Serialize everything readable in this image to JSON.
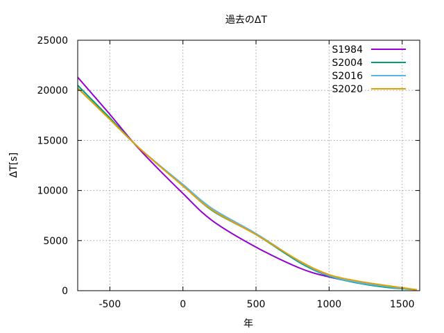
{
  "chart_data": {
    "type": "line",
    "title": "過去のΔT",
    "xlabel": "年",
    "ylabel": "ΔT[s]",
    "xlim": [
      -720,
      1620
    ],
    "ylim": [
      0,
      25000
    ],
    "xticks": [
      -500,
      0,
      500,
      1000,
      1500
    ],
    "xtick_labels": [
      "-500",
      "0",
      "500",
      "1000",
      "1500"
    ],
    "yticks": [
      0,
      5000,
      10000,
      15000,
      20000,
      25000
    ],
    "ytick_labels": [
      "0",
      "5000",
      "10000",
      "15000",
      "20000",
      "25000"
    ],
    "grid": true,
    "legend_position": "top-right",
    "series": [
      {
        "name": "S1984",
        "color": "#9400d3",
        "x": [
          -720,
          -500,
          -300,
          0,
          200,
          500,
          800,
          1000,
          1200,
          1400,
          1600
        ],
        "y": [
          21300,
          17600,
          14150,
          9700,
          7000,
          4350,
          2250,
          1370,
          800,
          400,
          100
        ]
      },
      {
        "name": "S2004",
        "color": "#009e73",
        "x": [
          -720,
          -500,
          -300,
          0,
          200,
          500,
          800,
          1000,
          1200,
          1400,
          1600
        ],
        "y": [
          20500,
          17250,
          14250,
          10500,
          8000,
          5600,
          2800,
          1450,
          750,
          320,
          100
        ]
      },
      {
        "name": "S2016",
        "color": "#56b4e9",
        "x": [
          -720,
          -500,
          -300,
          0,
          200,
          500,
          800,
          1000,
          1200,
          1400,
          1600
        ],
        "y": [
          20250,
          17100,
          14250,
          10600,
          8200,
          5700,
          2900,
          1500,
          800,
          400,
          100
        ]
      },
      {
        "name": "S2020",
        "color": "#e69f00",
        "x": [
          -720,
          -500,
          -300,
          0,
          200,
          500,
          800,
          1000,
          1200,
          1400,
          1600
        ],
        "y": [
          20200,
          17100,
          14250,
          10450,
          8050,
          5600,
          2950,
          1600,
          950,
          500,
          100
        ]
      }
    ]
  }
}
